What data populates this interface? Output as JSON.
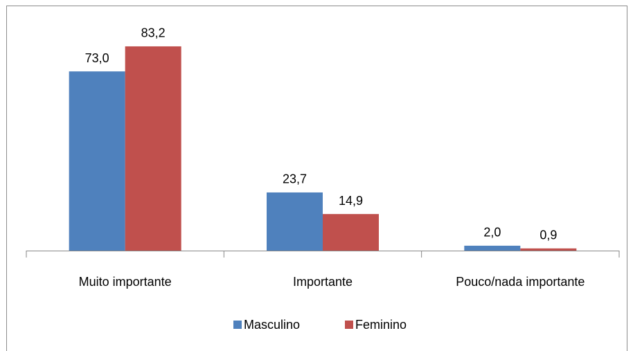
{
  "chart_data": {
    "type": "bar",
    "categories": [
      "Muito importante",
      "Importante",
      "Pouco/nada importante"
    ],
    "series": [
      {
        "name": "Masculino",
        "color": "#4f81bd",
        "values": [
          73.0,
          23.7,
          2.0
        ],
        "value_labels": [
          "73,0",
          "23,7",
          "2,0"
        ]
      },
      {
        "name": "Feminino",
        "color": "#c0504d",
        "values": [
          83.2,
          14.9,
          0.9
        ],
        "value_labels": [
          "83,2",
          "14,9",
          "0,9"
        ]
      }
    ]
  }
}
